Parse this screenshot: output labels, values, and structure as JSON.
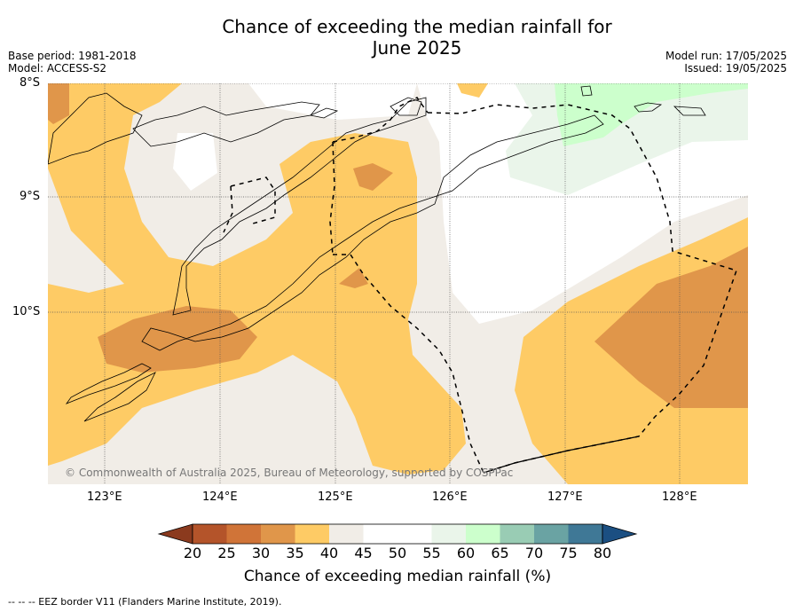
{
  "title": "Chance of exceeding the median rainfall for\nJune 2025",
  "title_line1": "Chance of exceeding the median rainfall for",
  "title_line2": "June 2025",
  "base_period": "Base period: 1981-2018",
  "model": "Model: ACCESS-S2",
  "model_run": "Model run: 17/05/2025",
  "issued": "Issued: 19/05/2025",
  "lat_labels": [
    "8°S",
    "9°S",
    "10°S"
  ],
  "lon_labels": [
    "123°E",
    "124°E",
    "125°E",
    "126°E",
    "127°E",
    "128°E"
  ],
  "copyright": "© Commonwealth of Australia 2025, Bureau of Meteorology, supported by COSPPac",
  "colorbar": {
    "title": "Chance of exceeding median rainfall (%)",
    "ticks": [
      "20",
      "25",
      "30",
      "35",
      "40",
      "45",
      "50",
      "55",
      "60",
      "65",
      "70",
      "75",
      "80"
    ],
    "colors": [
      "#8b3a1e",
      "#b4542a",
      "#d07438",
      "#e0964a",
      "#fecb65",
      "#f1ede7",
      "#ffffff",
      "#ffffff",
      "#eaf5ea",
      "#ccffcc",
      "#99ccb4",
      "#6aa3a3",
      "#3f7896",
      "#1b4f82"
    ]
  },
  "footnote": "--  --  -- EEZ border V11 (Flanders Marine Institute, 2019)."
}
